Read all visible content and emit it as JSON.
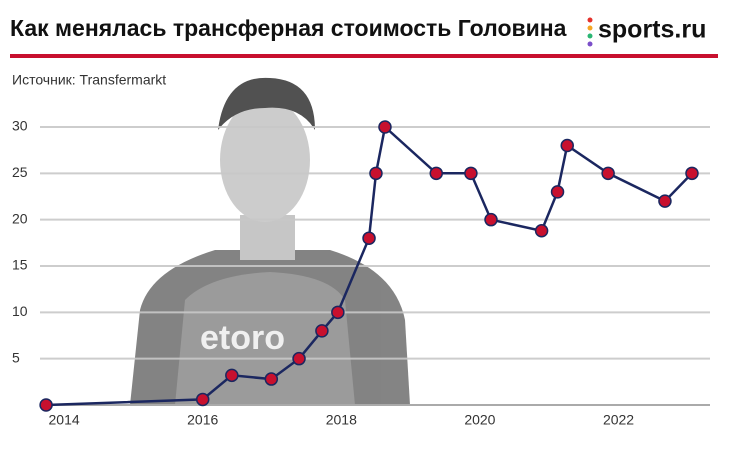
{
  "chart_data": {
    "type": "line",
    "title": "Как менялась трансферная стоимость Головина",
    "logo": "sports.ru",
    "source": "Источник: Transfermarkt",
    "x": [
      2013.74,
      2016.0,
      2016.42,
      2016.99,
      2017.39,
      2017.72,
      2017.95,
      2018.4,
      2018.5,
      2018.63,
      2019.37,
      2019.87,
      2020.16,
      2020.89,
      2021.12,
      2021.26,
      2021.85,
      2022.67,
      2023.06
    ],
    "values": [
      0,
      0.6,
      3.2,
      2.8,
      5,
      8,
      10,
      18,
      25,
      30,
      25,
      25,
      20,
      18.8,
      23,
      28,
      25,
      22,
      25
    ],
    "color": "#1b2760",
    "marker_color": "#c8102e",
    "xlim": [
      2013.58,
      2023.32
    ],
    "xticks": [
      2014,
      2016,
      2018,
      2020,
      2022
    ],
    "ylim": [
      0,
      30
    ],
    "yticks": [
      5,
      10,
      15,
      20,
      25,
      30
    ],
    "grid": true
  }
}
